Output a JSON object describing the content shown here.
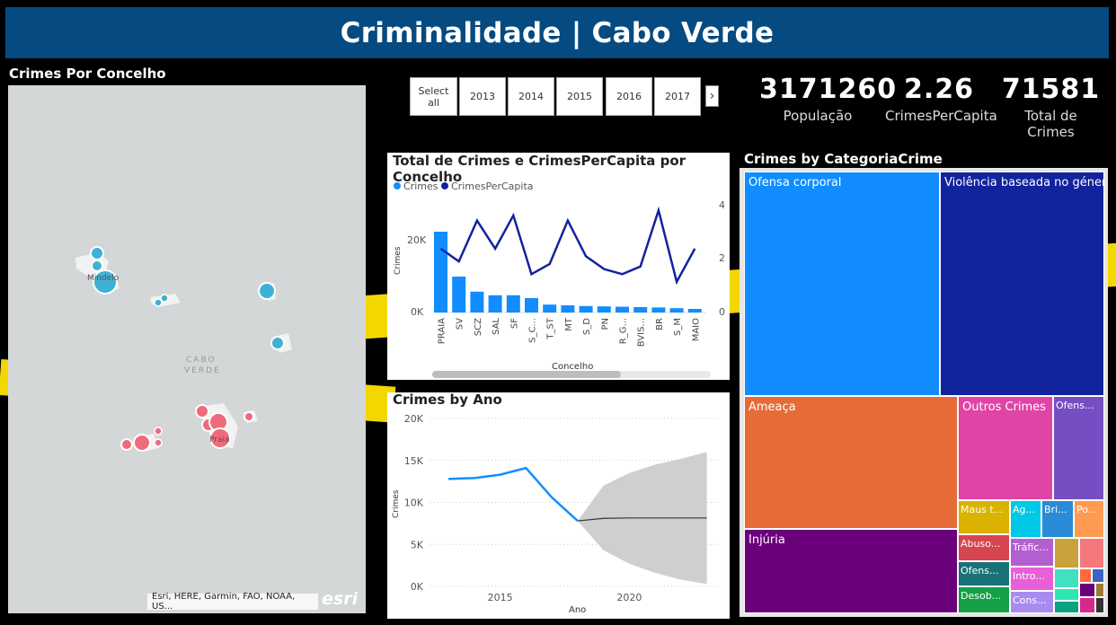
{
  "header": {
    "title": "Criminalidade | Cabo Verde"
  },
  "map": {
    "title": "Crimes Por Concelho",
    "labels": {
      "mindelo": "Mindelo",
      "cabo_verde_1": "CABO",
      "cabo_verde_2": "VERDE",
      "praia": "Praia"
    },
    "attribution": "Esri, HERE, Garmin, FAO, NOAA, US...",
    "logo": "esri"
  },
  "slicer": {
    "items": [
      "Select all",
      "2013",
      "2014",
      "2015",
      "2016",
      "2017"
    ]
  },
  "kpis": [
    {
      "value": "3171260",
      "label": "População"
    },
    {
      "value": "2.26",
      "label": "CrimesPerCapita"
    },
    {
      "value": "71581",
      "label": "Total de Crimes"
    }
  ],
  "combo": {
    "title": "Total de Crimes e CrimesPerCapita por Concelho",
    "legend": [
      "Crimes",
      "CrimesPerCapita"
    ],
    "ylabel": "Crimes",
    "xlabel": "Concelho",
    "y_ticks": [
      "20K",
      "0K"
    ],
    "y2_ticks": [
      "4",
      "2",
      "0"
    ]
  },
  "line": {
    "title": "Crimes by Ano",
    "ylabel": "Crimes",
    "xlabel": "Ano",
    "y_ticks": [
      "20K",
      "15K",
      "10K",
      "5K",
      "0K"
    ],
    "x_ticks": [
      "2015",
      "2020"
    ]
  },
  "treemap": {
    "title": "Crimes by CategoriaCrime",
    "tiles": [
      "Ofensa corporal",
      "Violência baseada no género",
      "Ameaça",
      "Outros Crimes",
      "Ofens...",
      "Injúria",
      "Maus t...",
      "Ag...",
      "Bri...",
      "Po...",
      "Abuso...",
      "Tráfic...",
      "Ofens...",
      "Intro...",
      "Desob...",
      "Cons..."
    ]
  },
  "chart_data": [
    {
      "type": "bar",
      "title": "Total de Crimes e CrimesPerCapita por Concelho",
      "xlabel": "Concelho",
      "ylabel": "Crimes",
      "categories": [
        "PRAIA",
        "SV",
        "SCZ",
        "SAL",
        "SF",
        "S_C...",
        "T_ST",
        "MT",
        "S_D",
        "PN",
        "R_G...",
        "BVIS...",
        "BR",
        "S_M",
        "MAIO"
      ],
      "series": [
        {
          "name": "Crimes",
          "type": "bar",
          "values": [
            22500,
            10000,
            5800,
            4800,
            4800,
            4000,
            2200,
            2000,
            1800,
            1700,
            1600,
            1500,
            1400,
            1200,
            1000
          ]
        },
        {
          "name": "CrimesPerCapita",
          "type": "line",
          "axis": "secondary",
          "values": [
            2.5,
            2.0,
            3.6,
            2.5,
            3.8,
            1.5,
            1.9,
            3.6,
            2.2,
            1.7,
            1.5,
            1.8,
            4.0,
            1.2,
            2.5
          ]
        }
      ],
      "ylim": [
        0,
        27000
      ],
      "y2lim": [
        0,
        4.5
      ],
      "legend": "top-left"
    },
    {
      "type": "line",
      "title": "Crimes by Ano",
      "xlabel": "Ano",
      "ylabel": "Crimes",
      "x": [
        2013,
        2014,
        2015,
        2016,
        2017,
        2018
      ],
      "series": [
        {
          "name": "Crimes",
          "values": [
            12800,
            12900,
            13300,
            14100,
            10600,
            7800
          ]
        }
      ],
      "forecast": {
        "x": [
          2018,
          2019,
          2020,
          2021,
          2022,
          2023
        ],
        "values": [
          7800,
          8100,
          8150,
          8150,
          8150,
          8150
        ],
        "upper": [
          7800,
          12000,
          13500,
          14500,
          15200,
          16000
        ],
        "lower": [
          7800,
          4300,
          2700,
          1600,
          800,
          300
        ]
      },
      "xlim": [
        2012.3,
        2023.5
      ],
      "ylim": [
        0,
        20000
      ],
      "grid": true
    },
    {
      "type": "treemap",
      "title": "Crimes by CategoriaCrime",
      "categories": [
        "Ofensa corporal",
        "Violência baseada no género",
        "Ameaça",
        "Outros Crimes",
        "Ofens...",
        "Injúria",
        "Maus t...",
        "Ag...",
        "Bri...",
        "Po...",
        "Abuso...",
        "Tráfic...",
        "Ofens...",
        "Intro...",
        "Desob...",
        "Cons..."
      ],
      "colors": [
        "#118dff",
        "#12239e",
        "#e66c37",
        "#e044a7",
        "#744ec2",
        "#6b007b",
        "#d9b300",
        "#00c8e6",
        "#2a8bd6",
        "#ff9a52",
        "#d64550",
        "#b45fd1",
        "#197278",
        "#e85fd8",
        "#15a046",
        "#a98bf0"
      ]
    }
  ]
}
